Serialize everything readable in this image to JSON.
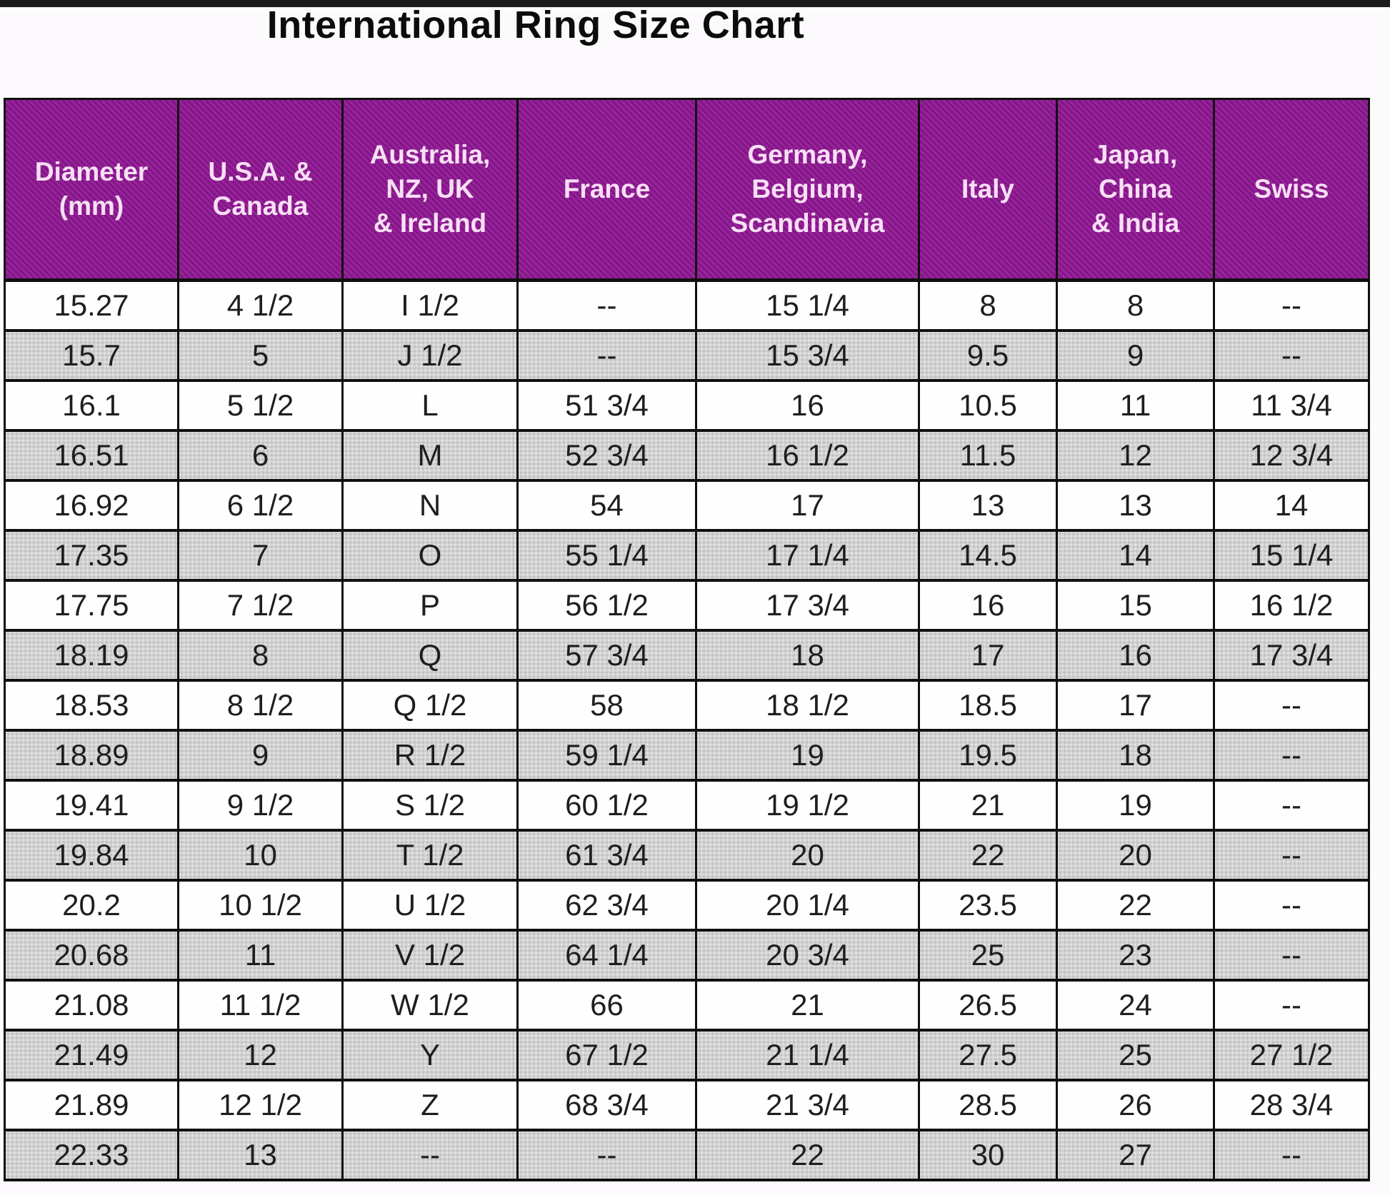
{
  "chart_data": {
    "type": "table",
    "title": "International Ring Size Chart",
    "columns": [
      "Diameter\n(mm)",
      "U.S.A. &\nCanada",
      "Australia,\nNZ, UK\n& Ireland",
      "France",
      "Germany,\nBelgium,\nScandinavia",
      "Italy",
      "Japan,\nChina\n& India",
      "Swiss"
    ],
    "rows": [
      [
        "15.27",
        "4 1/2",
        "I 1/2",
        "--",
        "15 1/4",
        "8",
        "8",
        "--"
      ],
      [
        "15.7",
        "5",
        "J 1/2",
        "--",
        "15 3/4",
        "9.5",
        "9",
        "--"
      ],
      [
        "16.1",
        "5 1/2",
        "L",
        "51 3/4",
        "16",
        "10.5",
        "11",
        "11 3/4"
      ],
      [
        "16.51",
        "6",
        "M",
        "52 3/4",
        "16 1/2",
        "11.5",
        "12",
        "12 3/4"
      ],
      [
        "16.92",
        "6 1/2",
        "N",
        "54",
        "17",
        "13",
        "13",
        "14"
      ],
      [
        "17.35",
        "7",
        "O",
        "55 1/4",
        "17 1/4",
        "14.5",
        "14",
        "15 1/4"
      ],
      [
        "17.75",
        "7 1/2",
        "P",
        "56 1/2",
        "17 3/4",
        "16",
        "15",
        "16 1/2"
      ],
      [
        "18.19",
        "8",
        "Q",
        "57 3/4",
        "18",
        "17",
        "16",
        "17 3/4"
      ],
      [
        "18.53",
        "8 1/2",
        "Q 1/2",
        "58",
        "18 1/2",
        "18.5",
        "17",
        "--"
      ],
      [
        "18.89",
        "9",
        "R 1/2",
        "59 1/4",
        "19",
        "19.5",
        "18",
        "--"
      ],
      [
        "19.41",
        "9 1/2",
        "S 1/2",
        "60 1/2",
        "19 1/2",
        "21",
        "19",
        "--"
      ],
      [
        "19.84",
        "10",
        "T 1/2",
        "61 3/4",
        "20",
        "22",
        "20",
        "--"
      ],
      [
        "20.2",
        "10 1/2",
        "U 1/2",
        "62 3/4",
        "20 1/4",
        "23.5",
        "22",
        "--"
      ],
      [
        "20.68",
        "11",
        "V 1/2",
        "64 1/4",
        "20 3/4",
        "25",
        "23",
        "--"
      ],
      [
        "21.08",
        "11 1/2",
        "W 1/2",
        "66",
        "21",
        "26.5",
        "24",
        "--"
      ],
      [
        "21.49",
        "12",
        "Y",
        "67 1/2",
        "21 1/4",
        "27.5",
        "25",
        "27 1/2"
      ],
      [
        "21.89",
        "12 1/2",
        "Z",
        "68 3/4",
        "21 3/4",
        "28.5",
        "26",
        "28 3/4"
      ],
      [
        "22.33",
        "13",
        "--",
        "--",
        "22",
        "30",
        "27",
        "--"
      ]
    ],
    "empty_marker": "--",
    "layout": {
      "header_rows": 1,
      "row_striping": "white-gray-alternating",
      "grid": "on"
    }
  },
  "colors": {
    "header_bg": "#8D1591",
    "header_text": "#F8DFF5",
    "row_alt_bg": "#D2D2D2",
    "row_bg": "#FEFEFE",
    "border": "#101010",
    "title_text": "#0C0C0C",
    "top_bar": "#1C1C1C"
  }
}
